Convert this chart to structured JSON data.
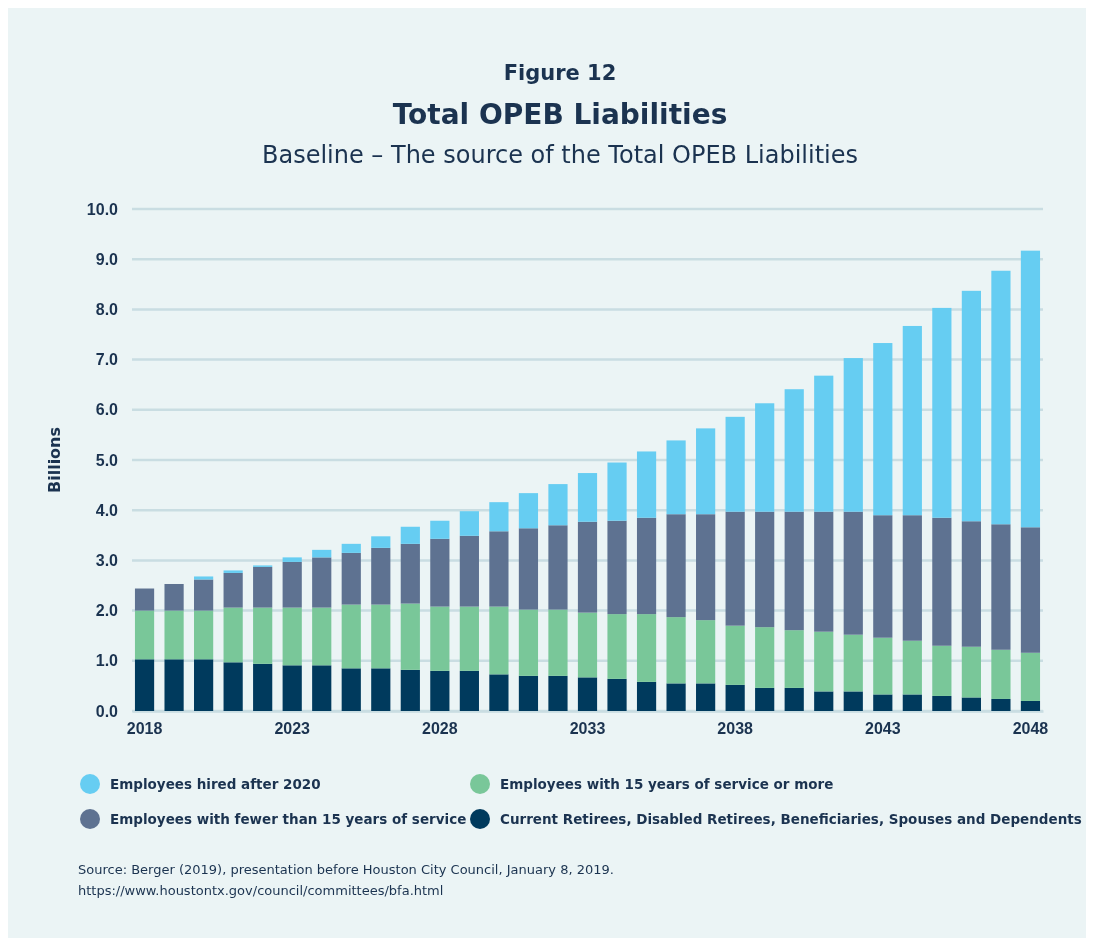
{
  "chart_data": {
    "type": "bar",
    "stacked": true,
    "title": "Total OPEB Liabilities",
    "subtitle": "Baseline – The source of the Total OPEB Liabilities",
    "ylabel": "Billions",
    "categories": [
      "2018",
      null,
      null,
      null,
      null,
      "2023",
      null,
      null,
      null,
      null,
      "2028",
      null,
      null,
      null,
      null,
      "2033",
      null,
      null,
      null,
      null,
      "2038",
      null,
      null,
      null,
      null,
      "2043",
      null,
      null,
      null,
      null,
      "2048"
    ],
    "series": [
      {
        "name": "Current Retirees, Disabled Retirees, Beneficiaries, Spouses and Dependents",
        "color": "#003a5d",
        "values": [
          1.03,
          1.03,
          1.03,
          0.97,
          0.94,
          0.91,
          0.91,
          0.85,
          0.85,
          0.82,
          0.8,
          0.8,
          0.73,
          0.7,
          0.7,
          0.67,
          0.64,
          0.58,
          0.55,
          0.55,
          0.52,
          0.46,
          0.46,
          0.39,
          0.39,
          0.33,
          0.33,
          0.3,
          0.27,
          0.24,
          0.2
        ]
      },
      {
        "name": "Employees with 15 years of service or more",
        "color": "#79c799",
        "values": [
          0.97,
          0.97,
          0.97,
          1.09,
          1.12,
          1.15,
          1.15,
          1.27,
          1.27,
          1.32,
          1.28,
          1.28,
          1.35,
          1.32,
          1.32,
          1.29,
          1.29,
          1.35,
          1.32,
          1.26,
          1.18,
          1.21,
          1.15,
          1.19,
          1.13,
          1.13,
          1.07,
          1.0,
          1.01,
          0.98,
          0.96
        ]
      },
      {
        "name": "Employees with fewer than 15 years of service",
        "color": "#5e7291",
        "values": [
          0.44,
          0.53,
          0.62,
          0.69,
          0.81,
          0.91,
          1.0,
          1.03,
          1.13,
          1.19,
          1.35,
          1.41,
          1.5,
          1.62,
          1.68,
          1.81,
          1.86,
          1.92,
          2.05,
          2.11,
          2.27,
          2.3,
          2.36,
          2.39,
          2.45,
          2.44,
          2.5,
          2.55,
          2.5,
          2.5,
          2.5
        ]
      },
      {
        "name": "Employees hired after 2020",
        "color": "#66cdf2",
        "values": [
          0,
          0,
          0.06,
          0.05,
          0.03,
          0.09,
          0.15,
          0.18,
          0.23,
          0.34,
          0.36,
          0.49,
          0.58,
          0.7,
          0.82,
          0.97,
          1.16,
          1.32,
          1.47,
          1.71,
          1.89,
          2.16,
          2.44,
          2.71,
          3.06,
          3.43,
          3.77,
          4.18,
          4.59,
          5.05,
          5.51
        ]
      }
    ],
    "ylim": [
      0,
      10
    ],
    "yticks": [
      {
        "value": 0,
        "label": "0.0"
      },
      {
        "value": 1,
        "label": "1.0"
      },
      {
        "value": 2,
        "label": "2.0"
      },
      {
        "value": 3,
        "label": "3.0"
      },
      {
        "value": 4,
        "label": "4.0"
      },
      {
        "value": 5,
        "label": "5.0"
      },
      {
        "value": 6,
        "label": "6.0"
      },
      {
        "value": 7,
        "label": "7.0"
      },
      {
        "value": 8,
        "label": "8.0"
      },
      {
        "value": 9,
        "label": "9.0"
      },
      {
        "value": 10,
        "label": "10.0"
      }
    ],
    "grid": "y",
    "legend": "bottom",
    "annotations": [
      "Figure 12",
      "Source: Berger (2019), presentation before Houston City Council, January 8, 2019.",
      "https://www.houstontx.gov/council/committees/bfa.html"
    ]
  }
}
